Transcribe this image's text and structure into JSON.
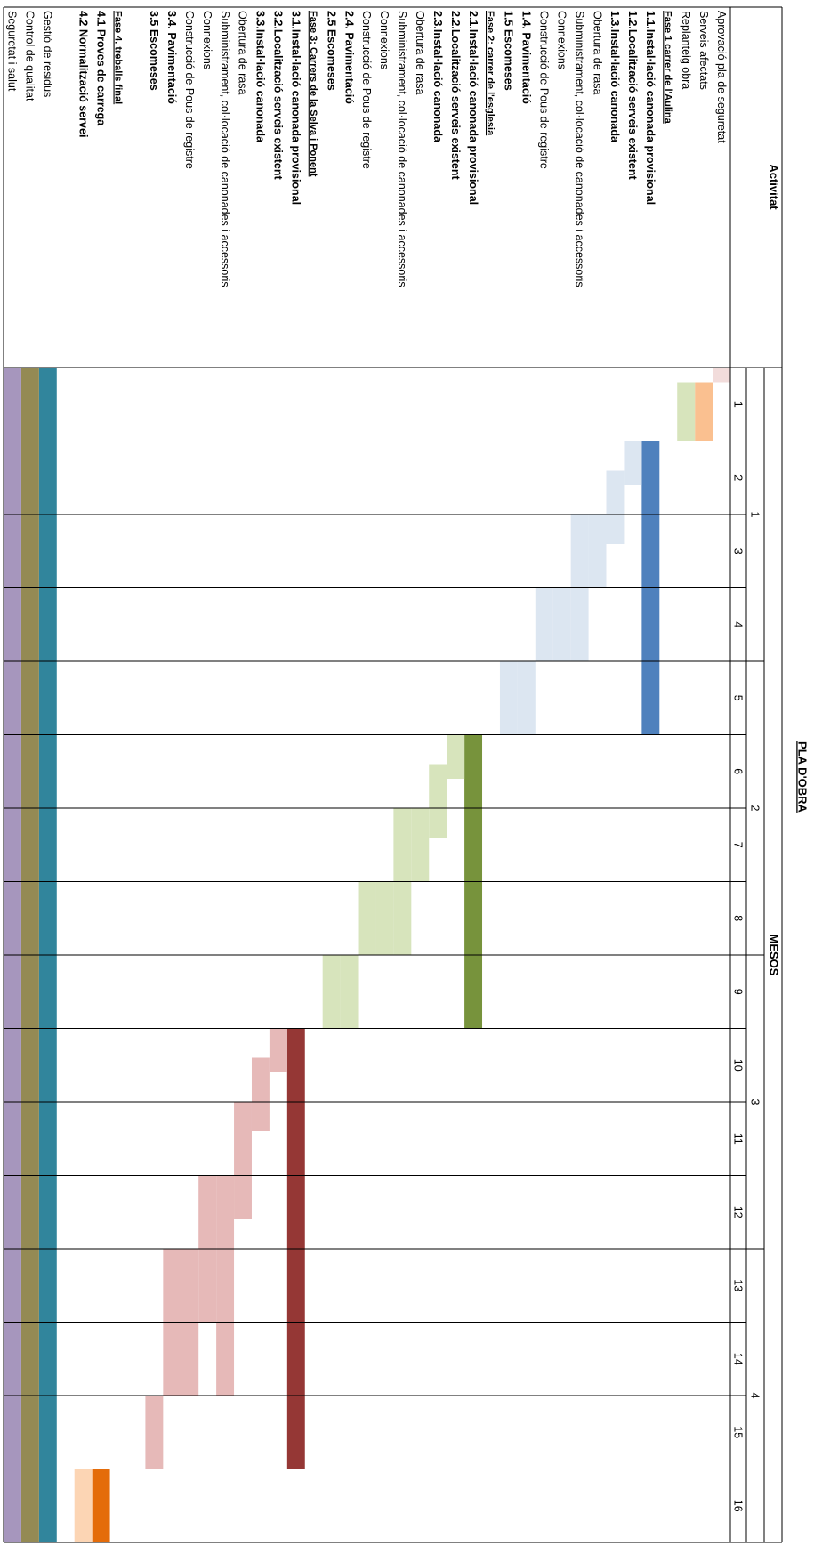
{
  "chart_data": {
    "type": "gantt",
    "title": "PLA D'OBRA",
    "activity_header": "Activitat",
    "time_header": "MESOS",
    "xlim": [
      0,
      16
    ],
    "quarters": [
      1,
      2,
      3,
      4
    ],
    "months": [
      1,
      2,
      3,
      4,
      5,
      6,
      7,
      8,
      9,
      10,
      11,
      12,
      13,
      14,
      15,
      16
    ],
    "groups": [
      [
        {
          "name": "Aprovació pla de seguretat",
          "style": "normal",
          "bars": [
            {
              "start": 0,
              "end": 0.2,
              "color": "#f2dcdb"
            }
          ]
        },
        {
          "name": "Serveis afectats",
          "style": "normal",
          "bars": [
            {
              "start": 0.2,
              "end": 1,
              "color": "#fac090"
            }
          ]
        },
        {
          "name": "Replanteig obra",
          "style": "normal",
          "bars": [
            {
              "start": 0.2,
              "end": 1,
              "color": "#d7e4bc"
            }
          ]
        },
        {
          "name": "Fase 1 carrer de l'Aulina",
          "style": "phase",
          "bars": []
        },
        {
          "name": "1.1.Instal·lació canonada provisional",
          "style": "bold",
          "bars": [
            {
              "start": 1,
              "end": 5,
              "color": "#4f81bd"
            }
          ]
        },
        {
          "name": "1.2.Localització serveis existent",
          "style": "bold",
          "bars": [
            {
              "start": 1,
              "end": 1.6,
              "color": "#dce6f1"
            }
          ]
        },
        {
          "name": "1.3.Instal·lació canonada",
          "style": "bold",
          "bars": [
            {
              "start": 1.4,
              "end": 2.4,
              "color": "#dce6f1"
            }
          ]
        },
        {
          "name": "Obertura de rasa",
          "style": "normal",
          "bars": [
            {
              "start": 2,
              "end": 3,
              "color": "#dce6f1"
            }
          ]
        },
        {
          "name": "Subministrament, col·locació de canonades i accessoris",
          "style": "normal",
          "bars": [
            {
              "start": 2,
              "end": 4,
              "color": "#dce6f1"
            }
          ]
        },
        {
          "name": "Connexions",
          "style": "normal",
          "bars": [
            {
              "start": 3,
              "end": 4,
              "color": "#dce6f1"
            }
          ]
        },
        {
          "name": "Construcció de Pous de registre",
          "style": "normal",
          "bars": [
            {
              "start": 3,
              "end": 4,
              "color": "#dce6f1"
            }
          ]
        },
        {
          "name": "1.4. Pavimentació",
          "style": "bold",
          "bars": [
            {
              "start": 4,
              "end": 5,
              "color": "#dce6f1"
            }
          ]
        },
        {
          "name": "1.5 Escomeses",
          "style": "bold",
          "bars": [
            {
              "start": 4,
              "end": 5,
              "color": "#dce6f1"
            }
          ]
        },
        {
          "name": "Fase 2: carrer de l'esglesia",
          "style": "phase",
          "bars": []
        },
        {
          "name": "2.1.Instal·lació canonada provisional",
          "style": "bold",
          "bars": [
            {
              "start": 5,
              "end": 9,
              "color": "#77933c"
            }
          ]
        },
        {
          "name": "2.2.Localització serveis existent",
          "style": "bold",
          "bars": [
            {
              "start": 5,
              "end": 5.6,
              "color": "#d7e4bc"
            }
          ]
        },
        {
          "name": "2.3.Instal·lació canonada",
          "style": "bold",
          "bars": [
            {
              "start": 5.4,
              "end": 6.4,
              "color": "#d7e4bc"
            }
          ]
        },
        {
          "name": "Obertura de rasa",
          "style": "normal",
          "bars": [
            {
              "start": 6,
              "end": 7,
              "color": "#d7e4bc"
            }
          ]
        },
        {
          "name": "Subministrament, col·locació de canonades i accessoris",
          "style": "normal",
          "bars": [
            {
              "start": 6,
              "end": 8,
              "color": "#d7e4bc"
            }
          ]
        },
        {
          "name": "Connexions",
          "style": "normal",
          "bars": [
            {
              "start": 7,
              "end": 8,
              "color": "#d7e4bc"
            }
          ]
        },
        {
          "name": "Construcció de Pous de registre",
          "style": "normal",
          "bars": [
            {
              "start": 7,
              "end": 8,
              "color": "#d7e4bc"
            }
          ]
        },
        {
          "name": "2.4. Pavimentació",
          "style": "bold",
          "bars": [
            {
              "start": 8,
              "end": 9,
              "color": "#d7e4bc"
            }
          ]
        },
        {
          "name": "2.5 Escomeses",
          "style": "bold",
          "bars": [
            {
              "start": 8,
              "end": 9,
              "color": "#d7e4bc"
            }
          ]
        },
        {
          "name": "Fase 3: Carrers de la Selva i Ponent",
          "style": "phase",
          "bars": []
        },
        {
          "name": "3.1.Instal·lació canonada provisional",
          "style": "bold",
          "bars": [
            {
              "start": 9,
              "end": 15,
              "color": "#953735"
            }
          ]
        },
        {
          "name": "3.2.Localització serveis existent",
          "style": "bold",
          "bars": [
            {
              "start": 9,
              "end": 9.6,
              "color": "#e6b9b8"
            }
          ]
        },
        {
          "name": "3.3.Instal·lació canonada",
          "style": "bold",
          "bars": [
            {
              "start": 9.4,
              "end": 10.4,
              "color": "#e6b9b8"
            }
          ]
        },
        {
          "name": "Obertura de rasa",
          "style": "normal",
          "bars": [
            {
              "start": 10,
              "end": 11.6,
              "color": "#e6b9b8"
            }
          ]
        },
        {
          "name": "Subministrament, col·locació de canonades i accessoris",
          "style": "normal",
          "bars": [
            {
              "start": 11,
              "end": 14,
              "color": "#e6b9b8"
            }
          ]
        },
        {
          "name": "Connexions",
          "style": "normal",
          "bars": [
            {
              "start": 11,
              "end": 13,
              "color": "#e6b9b8"
            }
          ]
        },
        {
          "name": "Construcció de Pous de registre",
          "style": "normal",
          "bars": [
            {
              "start": 12,
              "end": 14,
              "color": "#e6b9b8"
            }
          ]
        },
        {
          "name": "3.4. Pavimentació",
          "style": "bold",
          "bars": [
            {
              "start": 12,
              "end": 14,
              "color": "#e6b9b8"
            }
          ]
        },
        {
          "name": "3.5 Escomeses",
          "style": "bold",
          "bars": [
            {
              "start": 14,
              "end": 15,
              "color": "#e6b9b8"
            }
          ]
        }
      ],
      [
        {
          "name": "Fase 4. treballs final",
          "style": "phase",
          "bars": []
        },
        {
          "name": "4.1 Proves de carrega",
          "style": "bold",
          "bars": [
            {
              "start": 15,
              "end": 16,
              "color": "#e46c0a"
            }
          ]
        },
        {
          "name": "4.2 Normalització servei",
          "style": "bold",
          "bars": [
            {
              "start": 15,
              "end": 16,
              "color": "#fcd5b4"
            }
          ]
        }
      ],
      [
        {
          "name": "Gestió de residus",
          "style": "normal",
          "bars": [
            {
              "start": 0,
              "end": 16,
              "color": "#31859c"
            }
          ]
        },
        {
          "name": "Control de qualitat",
          "style": "normal",
          "bars": [
            {
              "start": 0,
              "end": 16,
              "color": "#948a54"
            }
          ]
        },
        {
          "name": "Seguretat i salut",
          "style": "normal",
          "bars": [
            {
              "start": 0,
              "end": 16,
              "color": "#a696bd"
            }
          ]
        }
      ]
    ]
  }
}
